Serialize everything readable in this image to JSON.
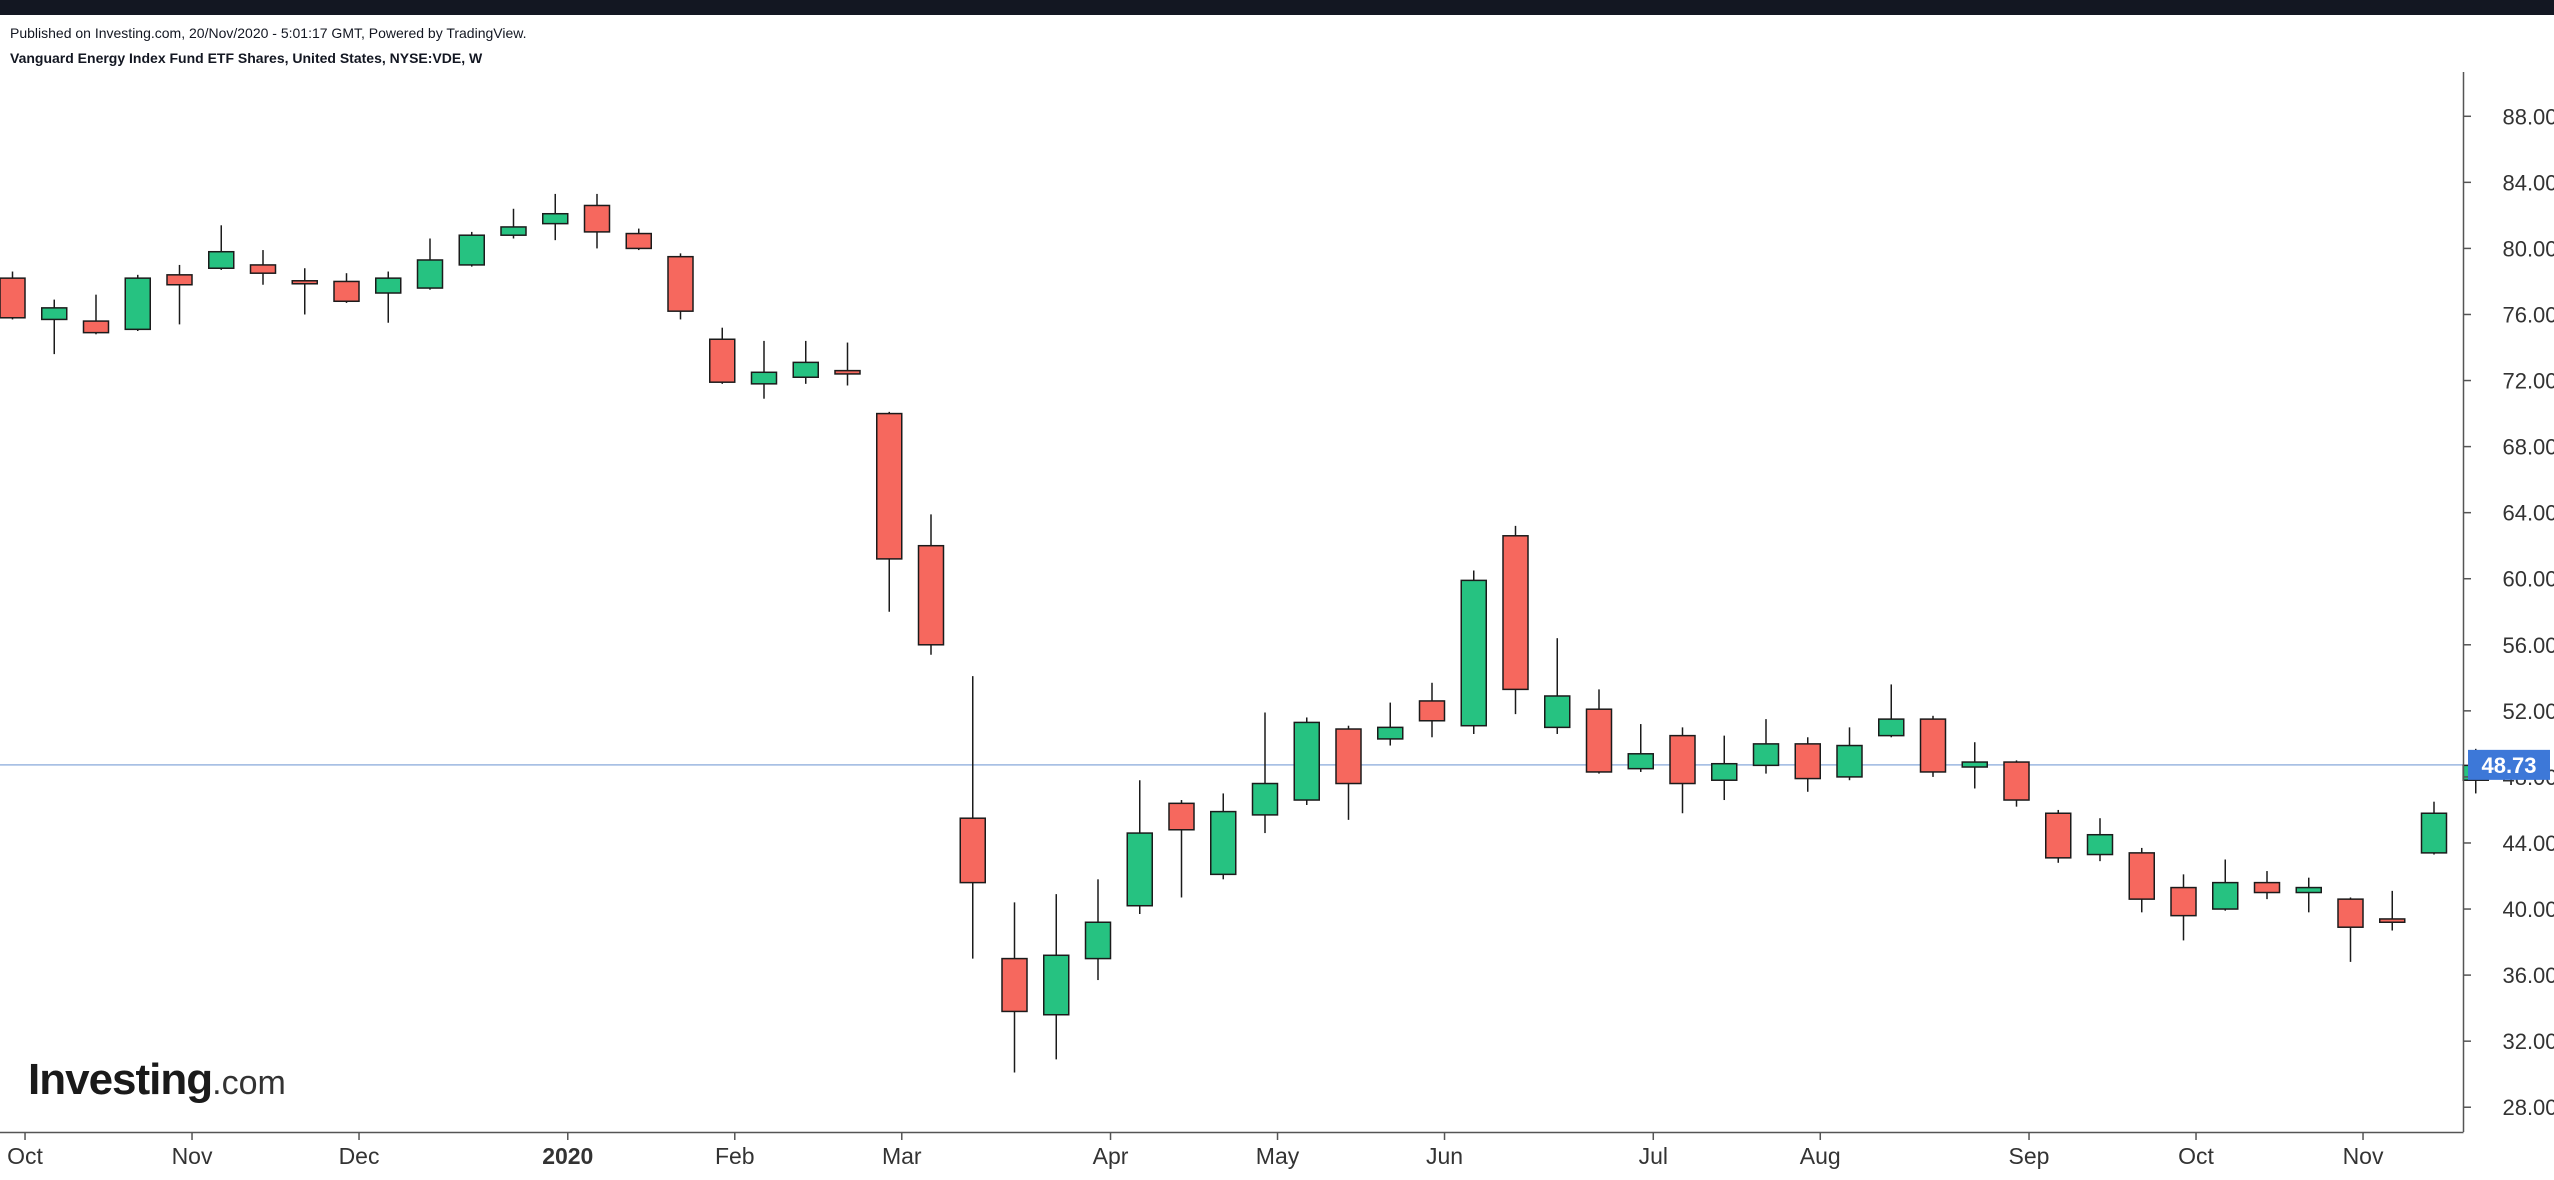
{
  "header": {
    "published": "Published on Investing.com, 20/Nov/2020 - 5:01:17 GMT, Powered by TradingView.",
    "symbol": "Vanguard Energy Index Fund ETF Shares, United States, NYSE:VDE, W"
  },
  "logo": {
    "brand": "Investing",
    "suffix": ".com"
  },
  "colors": {
    "up": "#26c281",
    "down": "#f6685e",
    "outline": "#1b1b1b",
    "price_line": "#9bb7e0",
    "price_label_bg": "#3d78d8",
    "axis": "#555555"
  },
  "chart_data": {
    "type": "candlestick",
    "interval": "W",
    "ylim": [
      26.5,
      90.5
    ],
    "y_ticks": [
      "28.00",
      "32.00",
      "36.00",
      "40.00",
      "44.00",
      "48.00",
      "52.00",
      "56.00",
      "60.00",
      "64.00",
      "68.00",
      "72.00",
      "76.00",
      "80.00",
      "84.00",
      "88.00"
    ],
    "x_labels": [
      {
        "label": "Oct",
        "index": 0.3
      },
      {
        "label": "Nov",
        "index": 4.3
      },
      {
        "label": "Dec",
        "index": 8.3
      },
      {
        "label": "2020",
        "index": 13.3,
        "bold": true
      },
      {
        "label": "Feb",
        "index": 17.3
      },
      {
        "label": "Mar",
        "index": 21.3
      },
      {
        "label": "Apr",
        "index": 26.3
      },
      {
        "label": "May",
        "index": 30.3
      },
      {
        "label": "Jun",
        "index": 34.3
      },
      {
        "label": "Jul",
        "index": 39.3
      },
      {
        "label": "Aug",
        "index": 43.3
      },
      {
        "label": "Sep",
        "index": 48.3
      },
      {
        "label": "Oct",
        "index": 52.3
      },
      {
        "label": "Nov",
        "index": 56.3
      }
    ],
    "last_price": "48.73",
    "candles": [
      {
        "o": 78.2,
        "h": 78.6,
        "l": 75.7,
        "c": 75.8
      },
      {
        "o": 75.7,
        "h": 76.9,
        "l": 73.6,
        "c": 76.4
      },
      {
        "o": 75.6,
        "h": 77.2,
        "l": 74.8,
        "c": 74.9
      },
      {
        "o": 75.1,
        "h": 78.4,
        "l": 75.0,
        "c": 78.2
      },
      {
        "o": 78.4,
        "h": 79.0,
        "l": 75.4,
        "c": 77.8
      },
      {
        "o": 78.8,
        "h": 81.4,
        "l": 78.7,
        "c": 79.8
      },
      {
        "o": 79.0,
        "h": 79.9,
        "l": 77.8,
        "c": 78.5
      },
      {
        "o": 78.0,
        "h": 78.8,
        "l": 76.0,
        "c": 77.9
      },
      {
        "o": 78.0,
        "h": 78.5,
        "l": 76.7,
        "c": 76.8
      },
      {
        "o": 77.3,
        "h": 78.6,
        "l": 75.5,
        "c": 78.2
      },
      {
        "o": 77.6,
        "h": 80.6,
        "l": 77.5,
        "c": 79.3
      },
      {
        "o": 79.0,
        "h": 81.0,
        "l": 78.9,
        "c": 80.8
      },
      {
        "o": 80.8,
        "h": 82.4,
        "l": 80.6,
        "c": 81.3
      },
      {
        "o": 81.5,
        "h": 83.3,
        "l": 80.5,
        "c": 82.1
      },
      {
        "o": 82.6,
        "h": 83.3,
        "l": 80.0,
        "c": 81.0
      },
      {
        "o": 80.9,
        "h": 81.2,
        "l": 79.9,
        "c": 80.0
      },
      {
        "o": 79.5,
        "h": 79.7,
        "l": 75.7,
        "c": 76.2
      },
      {
        "o": 74.5,
        "h": 75.2,
        "l": 71.8,
        "c": 71.9
      },
      {
        "o": 71.8,
        "h": 74.4,
        "l": 70.9,
        "c": 72.5
      },
      {
        "o": 72.2,
        "h": 74.4,
        "l": 71.8,
        "c": 73.1
      },
      {
        "o": 72.6,
        "h": 74.3,
        "l": 71.7,
        "c": 72.4
      },
      {
        "o": 70.0,
        "h": 70.1,
        "l": 58.0,
        "c": 61.2
      },
      {
        "o": 62.0,
        "h": 63.9,
        "l": 55.4,
        "c": 56.0
      },
      {
        "o": 45.5,
        "h": 54.1,
        "l": 37.0,
        "c": 41.6
      },
      {
        "o": 37.0,
        "h": 40.4,
        "l": 30.1,
        "c": 33.8
      },
      {
        "o": 33.6,
        "h": 40.9,
        "l": 30.9,
        "c": 37.2
      },
      {
        "o": 37.0,
        "h": 41.8,
        "l": 35.7,
        "c": 39.2
      },
      {
        "o": 40.2,
        "h": 47.8,
        "l": 39.7,
        "c": 44.6
      },
      {
        "o": 46.4,
        "h": 46.6,
        "l": 40.7,
        "c": 44.8
      },
      {
        "o": 42.1,
        "h": 47.0,
        "l": 41.8,
        "c": 45.9
      },
      {
        "o": 45.7,
        "h": 51.9,
        "l": 44.6,
        "c": 47.6
      },
      {
        "o": 46.6,
        "h": 51.6,
        "l": 46.3,
        "c": 51.3
      },
      {
        "o": 50.9,
        "h": 51.1,
        "l": 45.4,
        "c": 47.6
      },
      {
        "o": 50.3,
        "h": 52.5,
        "l": 49.9,
        "c": 51.0
      },
      {
        "o": 52.6,
        "h": 53.7,
        "l": 50.4,
        "c": 51.4
      },
      {
        "o": 51.1,
        "h": 60.5,
        "l": 50.6,
        "c": 59.9
      },
      {
        "o": 62.6,
        "h": 63.2,
        "l": 51.8,
        "c": 53.3
      },
      {
        "o": 51.0,
        "h": 56.4,
        "l": 50.6,
        "c": 52.9
      },
      {
        "o": 52.1,
        "h": 53.3,
        "l": 48.2,
        "c": 48.3
      },
      {
        "o": 48.5,
        "h": 51.2,
        "l": 48.3,
        "c": 49.4
      },
      {
        "o": 50.5,
        "h": 51.0,
        "l": 45.8,
        "c": 47.6
      },
      {
        "o": 47.8,
        "h": 50.5,
        "l": 46.6,
        "c": 48.8
      },
      {
        "o": 48.7,
        "h": 51.5,
        "l": 48.2,
        "c": 50.0
      },
      {
        "o": 50.0,
        "h": 50.4,
        "l": 47.1,
        "c": 47.9
      },
      {
        "o": 48.0,
        "h": 51.0,
        "l": 47.8,
        "c": 49.9
      },
      {
        "o": 50.5,
        "h": 53.6,
        "l": 50.4,
        "c": 51.5
      },
      {
        "o": 51.5,
        "h": 51.7,
        "l": 48.0,
        "c": 48.3
      },
      {
        "o": 48.6,
        "h": 50.1,
        "l": 47.3,
        "c": 48.9
      },
      {
        "o": 48.9,
        "h": 49.0,
        "l": 46.2,
        "c": 46.6
      },
      {
        "o": 45.8,
        "h": 46.0,
        "l": 42.8,
        "c": 43.1
      },
      {
        "o": 43.3,
        "h": 45.5,
        "l": 42.9,
        "c": 44.5
      },
      {
        "o": 43.4,
        "h": 43.7,
        "l": 39.8,
        "c": 40.6
      },
      {
        "o": 41.3,
        "h": 42.1,
        "l": 38.1,
        "c": 39.6
      },
      {
        "o": 40.0,
        "h": 43.0,
        "l": 39.9,
        "c": 41.6
      },
      {
        "o": 41.6,
        "h": 42.3,
        "l": 40.6,
        "c": 41.0
      },
      {
        "o": 41.0,
        "h": 41.9,
        "l": 39.8,
        "c": 41.3
      },
      {
        "o": 40.6,
        "h": 40.7,
        "l": 36.8,
        "c": 38.9
      },
      {
        "o": 39.4,
        "h": 41.1,
        "l": 38.7,
        "c": 39.2
      },
      {
        "o": 43.4,
        "h": 46.5,
        "l": 43.3,
        "c": 45.8
      },
      {
        "o": 47.8,
        "h": 49.7,
        "l": 47.0,
        "c": 48.7
      }
    ]
  }
}
